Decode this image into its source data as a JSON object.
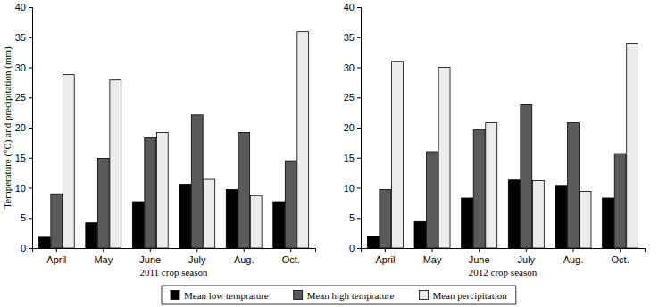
{
  "chart_data": [
    {
      "type": "bar",
      "ylabel": "Temperature (°C) and precipitation (mm)",
      "xlabel": "2011 crop season",
      "categories": [
        "April",
        "May",
        "June",
        "July",
        "Aug.",
        "Oct."
      ],
      "series": [
        {
          "name": "Mean low temprature",
          "color": "#000000",
          "values": [
            1.8,
            4.2,
            7.7,
            10.6,
            9.7,
            7.7
          ]
        },
        {
          "name": "Mean high temprature",
          "color": "#5a5a5a",
          "values": [
            9.0,
            14.9,
            18.3,
            22.1,
            19.2,
            14.5
          ]
        },
        {
          "name": "Mean percipitation",
          "color": "#ececec",
          "values": [
            28.8,
            27.9,
            19.2,
            11.4,
            8.7,
            35.9
          ]
        }
      ],
      "ylim": [
        0,
        40
      ],
      "yticks": [
        0,
        5,
        10,
        15,
        20,
        25,
        30,
        35,
        40
      ],
      "grid": false,
      "legend": "bottom"
    },
    {
      "type": "bar",
      "xlabel": "2012 crop season",
      "categories": [
        "April",
        "May",
        "June",
        "July",
        "Aug.",
        "Oct."
      ],
      "series": [
        {
          "color": "#000000",
          "values": [
            2.0,
            4.4,
            8.3,
            11.3,
            10.4,
            8.3
          ]
        },
        {
          "color": "#5a5a5a",
          "values": [
            9.7,
            16.0,
            19.7,
            23.8,
            20.8,
            15.7
          ]
        },
        {
          "color": "#ececec",
          "values": [
            31.0,
            30.0,
            20.8,
            11.2,
            9.4,
            34.0
          ]
        }
      ],
      "ylim": [
        0,
        40
      ],
      "yticks": [
        0,
        5,
        10,
        15,
        20,
        25,
        30,
        35,
        40
      ],
      "grid": false
    }
  ]
}
